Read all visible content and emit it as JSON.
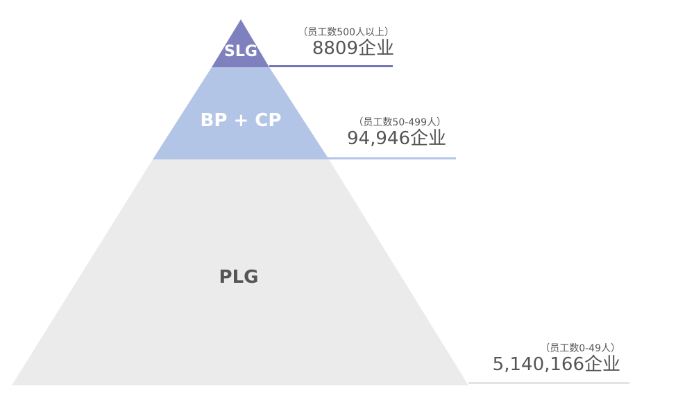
{
  "tiers": [
    {
      "label": "SLG",
      "employee_range": "（员工数500人以上）",
      "company_count": "8809企业",
      "fill": "#7f81bf",
      "line_color": "#7577b8",
      "text_color": "#ffffff"
    },
    {
      "label": "BP + CP",
      "employee_range": "（员工数50-499人）",
      "company_count": "94,946企业",
      "fill": "#b3c5e6",
      "line_color": "#b3c5e6",
      "text_color": "#ffffff"
    },
    {
      "label": "PLG",
      "employee_range": "（员工数0-49人）",
      "company_count": "5,140,166企业",
      "fill": "#ebebeb",
      "line_color": "#e3e3e3",
      "text_color": "#555555"
    }
  ]
}
